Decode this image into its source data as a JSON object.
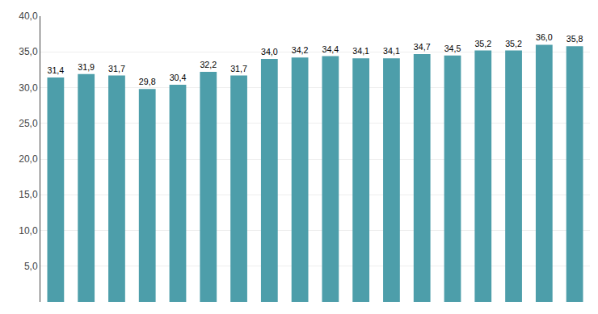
{
  "chart_data": {
    "type": "bar",
    "categories": [
      null,
      null,
      null,
      null,
      null,
      null,
      null,
      null,
      null,
      null,
      null,
      null,
      null,
      null,
      null,
      null,
      null,
      null
    ],
    "values": [
      31.4,
      31.9,
      31.7,
      29.8,
      30.4,
      32.2,
      31.7,
      34.0,
      34.2,
      34.4,
      34.1,
      34.1,
      34.7,
      34.5,
      35.2,
      35.2,
      36.0,
      35.8
    ],
    "value_labels": [
      "31,4",
      "31,9",
      "31,7",
      "29,8",
      "30,4",
      "32,2",
      "31,7",
      "34,0",
      "34,2",
      "34,4",
      "34,1",
      "34,1",
      "34,7",
      "34,5",
      "35,2",
      "35,2",
      "36,0",
      "35,8"
    ],
    "color": "#4d9eaa",
    "ylim": [
      0,
      40
    ],
    "yticks": [
      {
        "value": 5.0,
        "label": "5,0"
      },
      {
        "value": 10.0,
        "label": "10,0"
      },
      {
        "value": 15.0,
        "label": "15,0"
      },
      {
        "value": 20.0,
        "label": "20,0"
      },
      {
        "value": 25.0,
        "label": "25,0"
      },
      {
        "value": 30.0,
        "label": "30,0"
      },
      {
        "value": 35.0,
        "label": "35,0"
      },
      {
        "value": 40.0,
        "label": "40,0"
      }
    ],
    "grid": true,
    "data_labels": true,
    "tick_labels": "y"
  }
}
